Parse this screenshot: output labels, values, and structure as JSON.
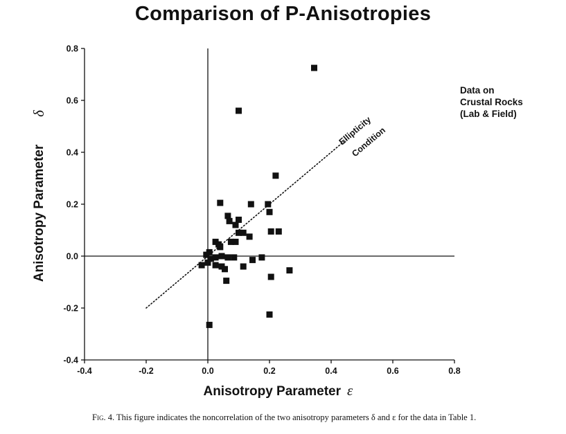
{
  "chart_data": {
    "type": "scatter",
    "title": "Comparison of P-Anisotropies",
    "xlabel": "Anisotropy Parameter",
    "xlabel_symbol": "ε",
    "ylabel": "Anisotropy Parameter",
    "ylabel_symbol": "δ",
    "xlim": [
      -0.4,
      0.8
    ],
    "ylim": [
      -0.4,
      0.8
    ],
    "xticks": [
      "-0.4",
      "-0.2",
      "0.0",
      "0.2",
      "0.4",
      "0.6",
      "0.8"
    ],
    "yticks": [
      "-0.4",
      "-0.2",
      "0.0",
      "0.2",
      "0.4",
      "0.6",
      "0.8"
    ],
    "grid": false,
    "marker": "square",
    "marker_color": "#111111",
    "side_note": [
      "Data on",
      "Crustal Rocks",
      "(Lab & Field)"
    ],
    "reference_line": {
      "name_lines": [
        "Ellipticity",
        "Condition"
      ],
      "style": "dotted",
      "x": [
        -0.2,
        0.45
      ],
      "y": [
        -0.2,
        0.45
      ]
    },
    "points": [
      {
        "x": 0.345,
        "y": 0.725
      },
      {
        "x": 0.1,
        "y": 0.56
      },
      {
        "x": 0.22,
        "y": 0.31
      },
      {
        "x": 0.04,
        "y": 0.205
      },
      {
        "x": 0.14,
        "y": 0.2
      },
      {
        "x": 0.195,
        "y": 0.2
      },
      {
        "x": 0.2,
        "y": 0.17
      },
      {
        "x": 0.065,
        "y": 0.155
      },
      {
        "x": 0.1,
        "y": 0.14
      },
      {
        "x": 0.07,
        "y": 0.135
      },
      {
        "x": 0.09,
        "y": 0.12
      },
      {
        "x": 0.1,
        "y": 0.09
      },
      {
        "x": 0.115,
        "y": 0.09
      },
      {
        "x": 0.205,
        "y": 0.095
      },
      {
        "x": 0.23,
        "y": 0.095
      },
      {
        "x": 0.135,
        "y": 0.075
      },
      {
        "x": 0.025,
        "y": 0.055
      },
      {
        "x": 0.035,
        "y": 0.045
      },
      {
        "x": 0.04,
        "y": 0.035
      },
      {
        "x": 0.075,
        "y": 0.055
      },
      {
        "x": 0.09,
        "y": 0.055
      },
      {
        "x": 0.005,
        "y": 0.015
      },
      {
        "x": -0.005,
        "y": 0.005
      },
      {
        "x": 0.01,
        "y": -0.01
      },
      {
        "x": 0.0,
        "y": -0.025
      },
      {
        "x": -0.02,
        "y": -0.035
      },
      {
        "x": 0.025,
        "y": -0.005
      },
      {
        "x": 0.045,
        "y": 0.0
      },
      {
        "x": 0.065,
        "y": -0.005
      },
      {
        "x": 0.085,
        "y": -0.005
      },
      {
        "x": 0.025,
        "y": -0.035
      },
      {
        "x": 0.045,
        "y": -0.04
      },
      {
        "x": 0.055,
        "y": -0.05
      },
      {
        "x": 0.115,
        "y": -0.04
      },
      {
        "x": 0.145,
        "y": -0.015
      },
      {
        "x": 0.175,
        "y": -0.005
      },
      {
        "x": 0.265,
        "y": -0.055
      },
      {
        "x": 0.06,
        "y": -0.095
      },
      {
        "x": 0.205,
        "y": -0.08
      },
      {
        "x": 0.2,
        "y": -0.225
      },
      {
        "x": 0.005,
        "y": -0.265
      }
    ]
  },
  "caption": {
    "fig_label": "Fig. 4.",
    "text": " This figure indicates the noncorrelation of the two anisotropy parameters δ and ε for the data in Table 1."
  }
}
